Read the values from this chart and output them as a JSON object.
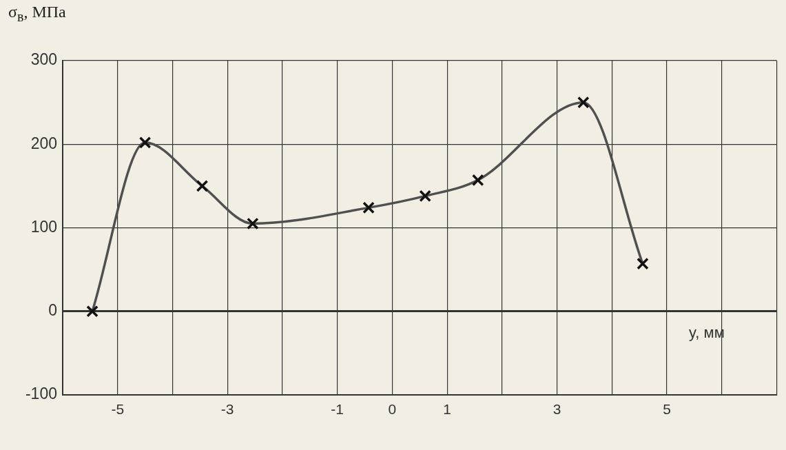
{
  "chart_data": {
    "type": "line",
    "ylabel": "σ$_{в}$, МПа",
    "xlabel": "y, мм",
    "x": [
      -5.46,
      -4.5,
      -3.46,
      -2.54,
      -0.43,
      0.6,
      1.56,
      3.48,
      4.56
    ],
    "series": [
      {
        "color": "#505050",
        "values": [
          0,
          202,
          150,
          105,
          124,
          138,
          157,
          250,
          57
        ]
      }
    ],
    "xlim": [
      -6,
      7
    ],
    "xticks": [
      {
        "value": -6,
        "label": null
      },
      -5,
      {
        "value": -4,
        "label": null
      },
      -3,
      {
        "value": -2,
        "label": null
      },
      -1,
      0,
      1,
      {
        "value": 2,
        "label": null
      },
      3,
      {
        "value": 4,
        "label": null
      },
      5,
      {
        "value": 6,
        "label": null
      },
      {
        "value": 7,
        "label": null
      }
    ],
    "ylim": [
      -100,
      300
    ],
    "yticks": [
      -100,
      0,
      100,
      200,
      300
    ],
    "grid": true,
    "marker": "cross",
    "line_style": "solid"
  }
}
